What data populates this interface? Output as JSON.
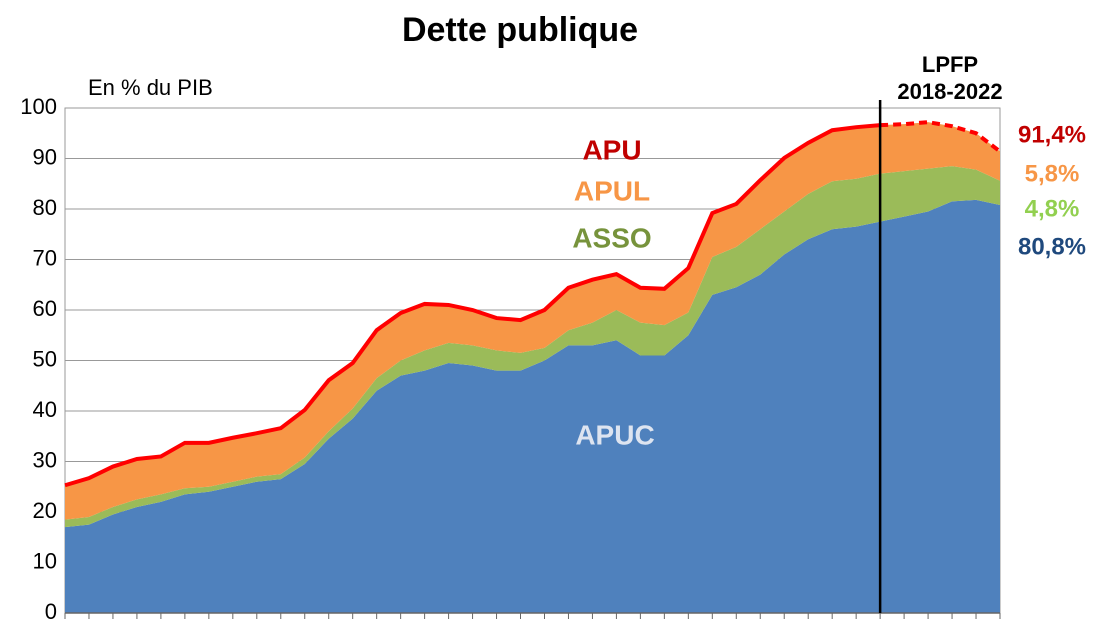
{
  "chart_data": {
    "type": "area",
    "title": "Dette publique",
    "y_label": "En % du PIB",
    "categories": [
      null,
      null,
      null,
      null,
      null,
      null,
      null,
      null,
      null,
      null,
      null,
      null,
      null,
      null,
      null,
      null,
      null,
      null,
      null,
      null,
      null,
      null,
      null,
      null,
      null,
      null,
      null,
      null,
      null,
      null,
      null,
      null,
      null,
      null,
      null,
      null,
      null,
      null,
      null,
      null
    ],
    "series": [
      {
        "name": "APUC",
        "color": "#4f81bd",
        "label_color": "#dde4f0",
        "end_label": "80,8%",
        "end_label_color": "#1f497d",
        "stacked": true,
        "values": [
          17,
          17.5,
          19.5,
          21,
          22,
          23.5,
          24,
          25,
          26,
          26.5,
          29.5,
          34.5,
          38.5,
          44,
          47,
          48,
          49.5,
          49,
          48,
          48,
          50,
          53,
          53,
          54,
          51,
          51,
          55,
          63,
          64.5,
          67,
          71,
          74,
          76,
          76.5,
          77.5,
          78.5,
          79.5,
          81.5,
          81.8,
          80.8
        ]
      },
      {
        "name": "ASSO",
        "color": "#9bbb59",
        "label_color": "#77933c",
        "end_label": "4,8%",
        "end_label_color": "#92d050",
        "stacked": true,
        "values": [
          1.5,
          1.5,
          1.5,
          1.5,
          1.5,
          1.2,
          1,
          1,
          1,
          1,
          1.3,
          1.5,
          2,
          2.5,
          3,
          4,
          4,
          4,
          4,
          3.5,
          2.5,
          3,
          4.5,
          6,
          6.5,
          6,
          4.5,
          7.5,
          8,
          9,
          8.5,
          9,
          9.5,
          9.5,
          9.5,
          9,
          8.5,
          7,
          6,
          4.8
        ]
      },
      {
        "name": "APUL",
        "color": "#f79646",
        "label_color": "#f79646",
        "end_label": "5,8%",
        "end_label_color": "#f79646",
        "stacked": true,
        "values": [
          6.8,
          7.7,
          8,
          8,
          7.5,
          9,
          8.7,
          8.7,
          8.6,
          9.1,
          9.4,
          10.1,
          9,
          9.5,
          9.4,
          9.2,
          7.5,
          7,
          6.4,
          6.5,
          7.5,
          8.4,
          8.5,
          7.1,
          6.9,
          7.2,
          8.8,
          8.7,
          8.5,
          9.7,
          10.6,
          10.1,
          10.1,
          10.2,
          9.6,
          9.3,
          9.2,
          7.9,
          7.2,
          5.8
        ]
      },
      {
        "name": "APU",
        "color": "#ff0000",
        "label_color": "#c00000",
        "end_label": "91,4%",
        "end_label_color": "#c00000",
        "stacked": false,
        "values": [
          25.3,
          26.7,
          29,
          30.5,
          31,
          33.7,
          33.7,
          34.7,
          35.6,
          36.6,
          40.2,
          46.1,
          49.5,
          56,
          59.4,
          61.2,
          61,
          60,
          58.4,
          58,
          60,
          64.4,
          66,
          67.1,
          64.4,
          64.2,
          68.3,
          79.2,
          81,
          85.7,
          90.1,
          93.1,
          95.6,
          96.2,
          96.6,
          96.8,
          97.2,
          96.4,
          95,
          91.4
        ]
      }
    ],
    "annotation": {
      "lines": [
        "LPFP",
        "2018-2022"
      ],
      "at_category": 34
    },
    "ylim": [
      0,
      100
    ],
    "yticks": [
      0,
      10,
      20,
      30,
      40,
      50,
      60,
      70,
      80,
      90,
      100
    ],
    "grid": true
  }
}
